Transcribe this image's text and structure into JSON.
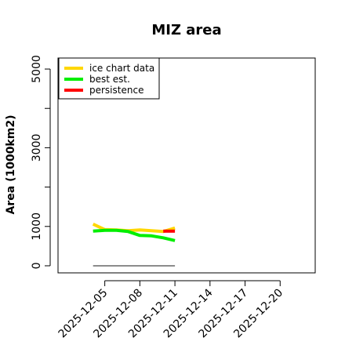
{
  "chart_data": {
    "type": "line",
    "title": "MIZ area",
    "ylabel": "Area (1000km2)",
    "xlabel": "",
    "xlim": [
      "2025-12-01",
      "2025-12-23"
    ],
    "ylim": [
      -180,
      5280
    ],
    "x_ticks": [
      "2025-12-05",
      "2025-12-08",
      "2025-12-11",
      "2025-12-14",
      "2025-12-17",
      "2025-12-20"
    ],
    "y_ticks": [
      0,
      1000,
      2000,
      3000,
      4000,
      5000
    ],
    "y_tick_labels": [
      "0",
      "1000",
      "",
      "3000",
      "",
      "5000"
    ],
    "legend_position": "top-left",
    "series": [
      {
        "name": "ice chart data",
        "color": "#FFD700",
        "x": [
          "2025-12-04",
          "2025-12-05",
          "2025-12-06",
          "2025-12-07",
          "2025-12-08",
          "2025-12-09",
          "2025-12-10",
          "2025-12-11"
        ],
        "y": [
          1060,
          920,
          910,
          890,
          910,
          890,
          870,
          960
        ]
      },
      {
        "name": "best est.",
        "color": "#00EE00",
        "x": [
          "2025-12-04",
          "2025-12-05",
          "2025-12-06",
          "2025-12-07",
          "2025-12-08",
          "2025-12-09",
          "2025-12-10",
          "2025-12-11"
        ],
        "y": [
          880,
          900,
          900,
          870,
          770,
          760,
          710,
          640
        ]
      },
      {
        "name": "persistence",
        "color": "#FF0000",
        "x": [
          "2025-12-10",
          "2025-12-11"
        ],
        "y": [
          880,
          880
        ]
      },
      {
        "name": "",
        "color": "#666666",
        "x": [
          "2025-12-04",
          "2025-12-11"
        ],
        "y": [
          0,
          0
        ]
      }
    ]
  }
}
